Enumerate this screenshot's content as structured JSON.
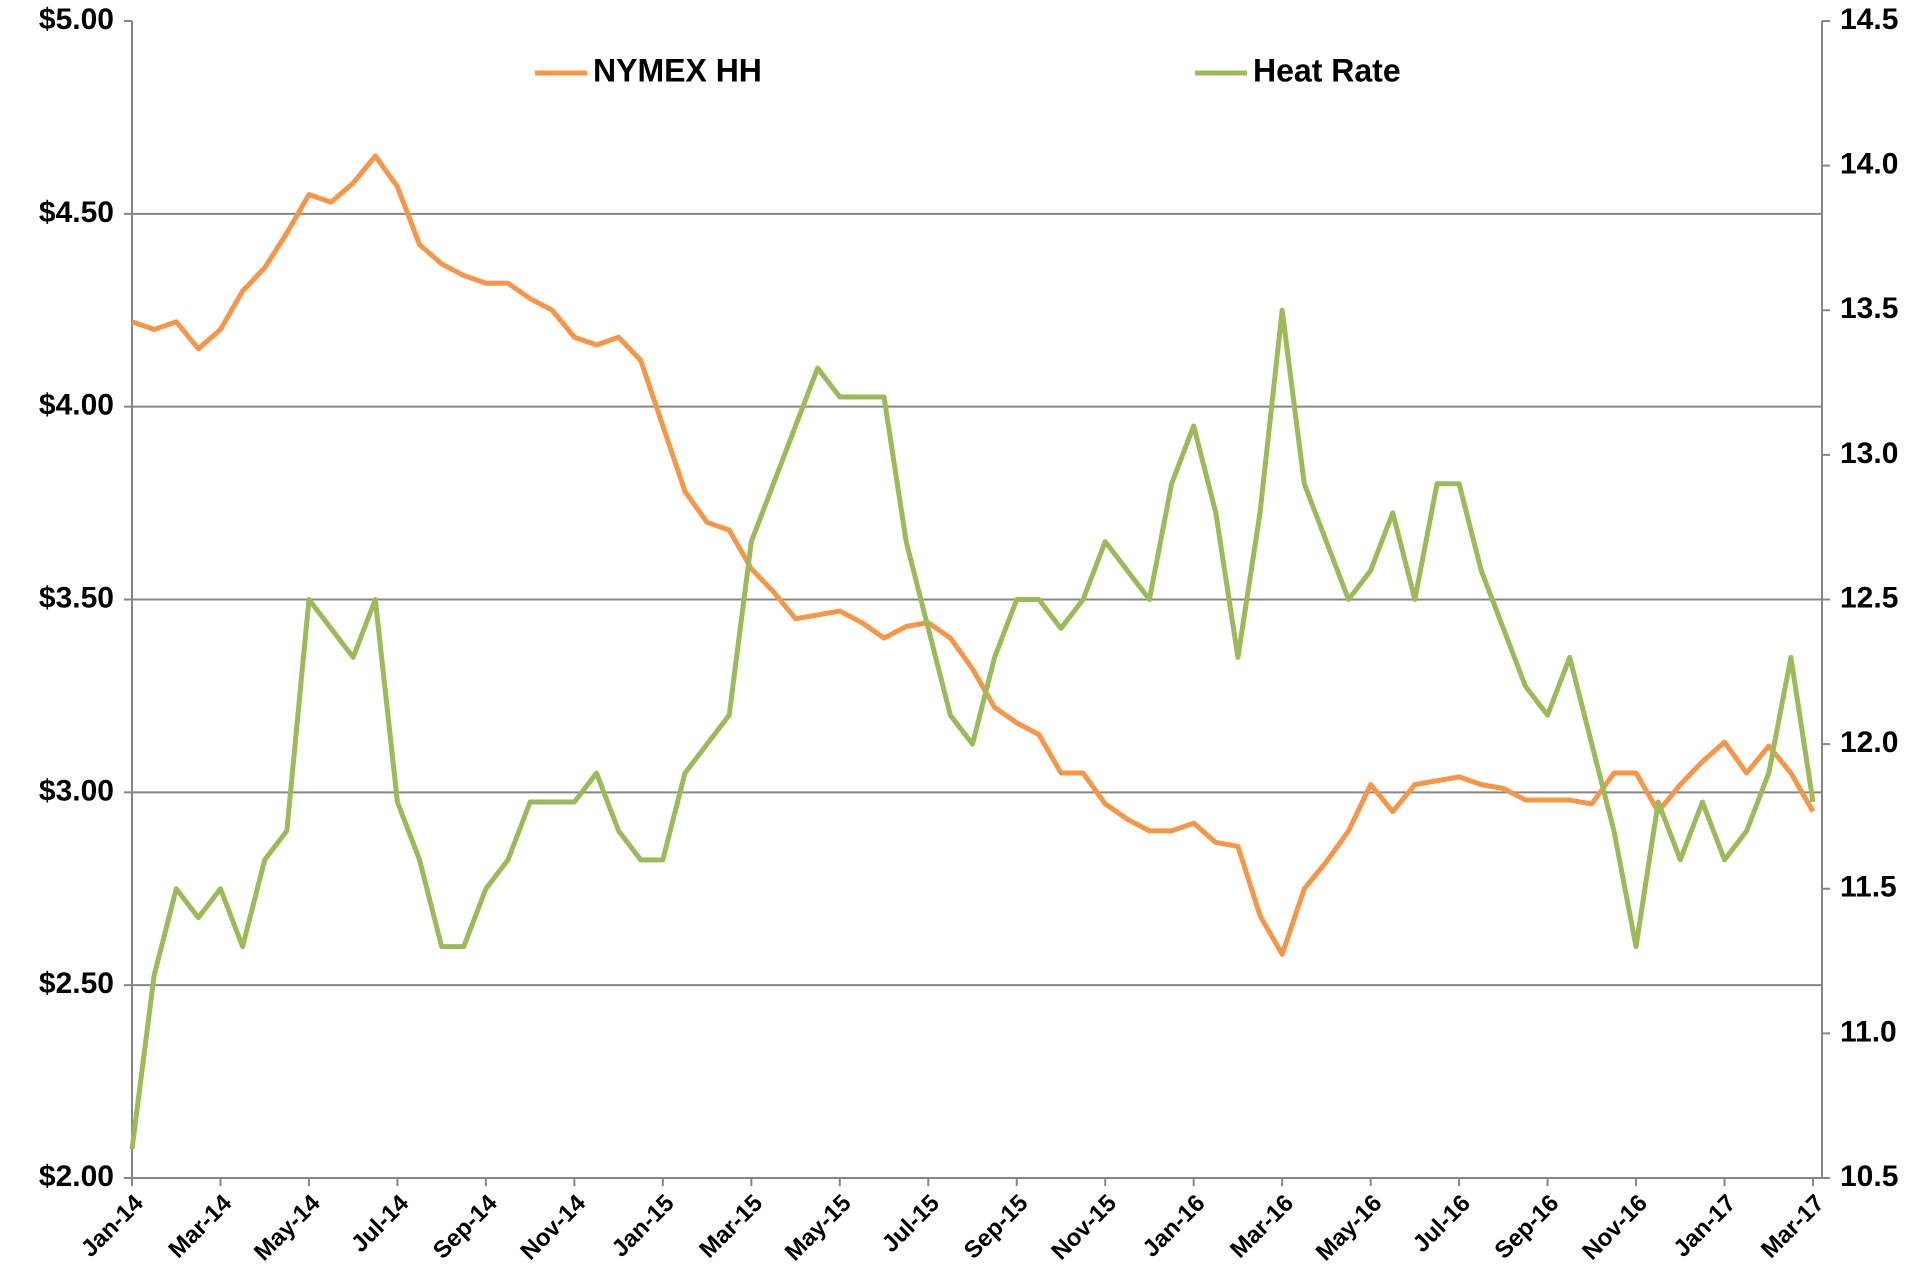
{
  "chart_data": {
    "type": "line",
    "categories": [
      "Jan-14",
      null,
      null,
      null,
      "Mar-14",
      null,
      null,
      null,
      "May-14",
      null,
      null,
      null,
      "Jul-14",
      null,
      null,
      null,
      "Sep-14",
      null,
      null,
      null,
      "Nov-14",
      null,
      null,
      null,
      "Jan-15",
      null,
      null,
      null,
      "Mar-15",
      null,
      null,
      null,
      "May-15",
      null,
      null,
      null,
      "Jul-15",
      null,
      null,
      null,
      "Sep-15",
      null,
      null,
      null,
      "Nov-15",
      null,
      null,
      null,
      "Jan-16",
      null,
      null,
      null,
      "Mar-16",
      null,
      null,
      null,
      "May-16",
      null,
      null,
      null,
      "Jul-16",
      null,
      null,
      null,
      "Sep-16",
      null,
      null,
      null,
      "Nov-16",
      null,
      null,
      null,
      "Jan-17",
      null,
      null,
      null,
      "Mar-17"
    ],
    "series": [
      {
        "name": "NYMEX HH",
        "color": "#f79646",
        "axis": "y",
        "values": [
          4.22,
          4.2,
          4.22,
          4.15,
          4.2,
          4.3,
          4.36,
          4.45,
          4.55,
          4.53,
          4.58,
          4.65,
          4.57,
          4.42,
          4.37,
          4.34,
          4.32,
          4.32,
          4.28,
          4.25,
          4.18,
          4.16,
          4.18,
          4.12,
          3.95,
          3.78,
          3.7,
          3.68,
          3.58,
          3.52,
          3.45,
          3.46,
          3.47,
          3.44,
          3.4,
          3.43,
          3.44,
          3.4,
          3.32,
          3.22,
          3.18,
          3.15,
          3.05,
          3.05,
          2.97,
          2.93,
          2.9,
          2.9,
          2.92,
          2.87,
          2.86,
          2.68,
          2.58,
          2.75,
          2.82,
          2.9,
          3.02,
          2.95,
          3.02,
          3.03,
          3.04,
          3.02,
          3.01,
          2.98,
          2.98,
          2.98,
          2.97,
          3.05,
          3.05,
          2.95,
          3.02,
          3.08,
          3.13,
          3.05,
          3.12,
          3.05,
          2.95
        ]
      },
      {
        "name": "Heat Rate",
        "color": "#9bbb59",
        "axis": "y2",
        "values": [
          10.6,
          11.2,
          11.5,
          11.4,
          11.5,
          11.3,
          11.6,
          11.7,
          12.5,
          12.4,
          12.3,
          12.5,
          11.8,
          11.6,
          11.3,
          11.3,
          11.5,
          11.6,
          11.8,
          11.8,
          11.8,
          11.9,
          11.7,
          11.6,
          11.6,
          11.9,
          12.0,
          12.1,
          12.7,
          12.9,
          13.1,
          13.3,
          13.2,
          13.2,
          13.2,
          12.7,
          12.4,
          12.1,
          12.0,
          12.3,
          12.5,
          12.5,
          12.4,
          12.5,
          12.7,
          12.6,
          12.5,
          12.9,
          13.1,
          12.8,
          12.3,
          12.8,
          13.5,
          12.9,
          12.7,
          12.5,
          12.6,
          12.8,
          12.5,
          12.9,
          12.9,
          12.6,
          12.4,
          12.2,
          12.1,
          12.3,
          12.0,
          11.7,
          11.3,
          11.8,
          11.6,
          11.8,
          11.6,
          11.7,
          11.9,
          12.3,
          11.8
        ]
      }
    ],
    "ylim": [
      2,
      5
    ],
    "yticks": [
      {
        "value": 2,
        "label": "$2.00"
      },
      {
        "value": 2.5,
        "label": "$2.50"
      },
      {
        "value": 3,
        "label": "$3.00"
      },
      {
        "value": 3.5,
        "label": "$3.50"
      },
      {
        "value": 4,
        "label": "$4.00"
      },
      {
        "value": 4.5,
        "label": "$4.50"
      },
      {
        "value": 5,
        "label": "$5.00"
      }
    ],
    "y2lim": [
      10.5,
      14.5
    ],
    "y2ticks": [
      10.5,
      {
        "value": 11,
        "label": "11.0"
      },
      11.5,
      {
        "value": 12,
        "label": "12.0"
      },
      12.5,
      {
        "value": 13,
        "label": "13.0"
      },
      13.5,
      {
        "value": 14,
        "label": "14.0"
      },
      14.5
    ],
    "grid": true,
    "legend": "top"
  }
}
